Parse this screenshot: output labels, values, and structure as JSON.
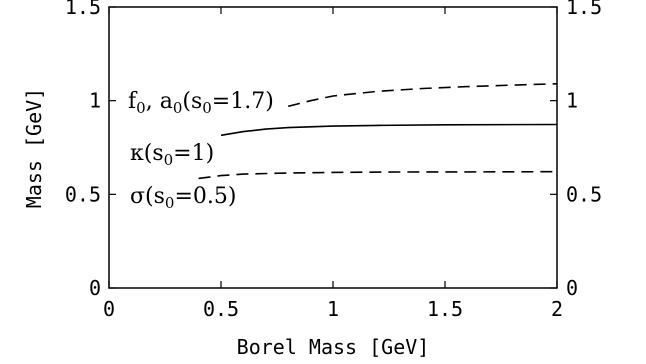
{
  "chart_data": {
    "type": "line",
    "xlabel": "Borel Mass [GeV]",
    "ylabel": "Mass [GeV]",
    "xlim": [
      0,
      2
    ],
    "ylim": [
      0,
      1.5
    ],
    "x_ticks": [
      {
        "value": 0,
        "label": "0"
      },
      {
        "value": 0.5,
        "label": "0.5"
      },
      {
        "value": 1,
        "label": "1"
      },
      {
        "value": 1.5,
        "label": "1.5"
      },
      {
        "value": 2,
        "label": "2"
      }
    ],
    "y_ticks": [
      {
        "value": 0,
        "label": "0"
      },
      {
        "value": 0.5,
        "label": "0.5"
      },
      {
        "value": 1,
        "label": "1"
      },
      {
        "value": 1.5,
        "label": "1.5"
      }
    ],
    "right_axis_labels": true,
    "grid": false,
    "series": [
      {
        "label_parts": [
          "f",
          "0",
          ", a",
          "0",
          "(s",
          "0",
          "=1.7)"
        ],
        "dash": "dashed",
        "x": [
          0.8,
          0.9,
          1.0,
          1.2,
          1.4,
          1.6,
          1.8,
          2.0
        ],
        "y": [
          0.97,
          1.0,
          1.025,
          1.05,
          1.065,
          1.075,
          1.083,
          1.09
        ]
      },
      {
        "label_parts": [
          "κ(s",
          "0",
          "=1)"
        ],
        "dash": "solid",
        "x": [
          0.5,
          0.6,
          0.7,
          0.8,
          1.0,
          1.2,
          1.5,
          2.0
        ],
        "y": [
          0.815,
          0.835,
          0.848,
          0.856,
          0.864,
          0.868,
          0.871,
          0.873
        ]
      },
      {
        "label_parts": [
          "σ(s",
          "0",
          "=0.5)"
        ],
        "dash": "dashed",
        "x": [
          0.4,
          0.5,
          0.6,
          0.8,
          1.0,
          1.3,
          1.6,
          2.0
        ],
        "y": [
          0.585,
          0.6,
          0.608,
          0.614,
          0.617,
          0.619,
          0.62,
          0.621
        ]
      }
    ]
  }
}
